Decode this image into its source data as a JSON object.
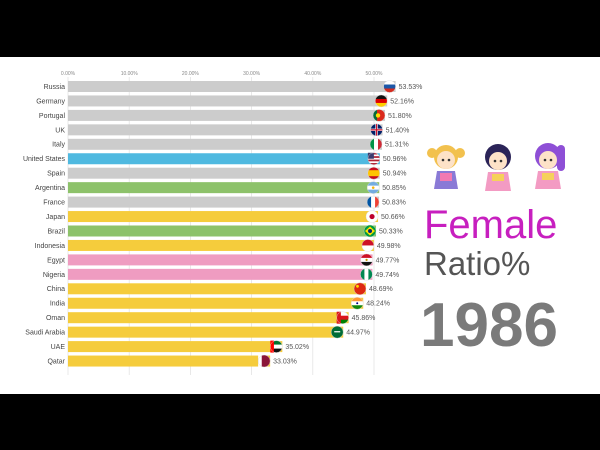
{
  "chart_data": {
    "type": "bar",
    "orientation": "horizontal",
    "x_ticks": [
      "0.00%",
      "10.00%",
      "20.00%",
      "30.00%",
      "40.00%",
      "50.00%"
    ],
    "xlim": [
      0,
      55
    ],
    "grid": true,
    "bars": [
      {
        "category": "Russia",
        "value": 53.53,
        "label": "53.53%",
        "color": "#cccccc",
        "flag": "russia-flag-icon"
      },
      {
        "category": "Germany",
        "value": 52.16,
        "label": "52.16%",
        "color": "#cccccc",
        "flag": "germany-flag-icon"
      },
      {
        "category": "Portugal",
        "value": 51.8,
        "label": "51.80%",
        "color": "#cccccc",
        "flag": "portugal-flag-icon"
      },
      {
        "category": "UK",
        "value": 51.4,
        "label": "51.40%",
        "color": "#cccccc",
        "flag": "uk-flag-icon"
      },
      {
        "category": "Italy",
        "value": 51.31,
        "label": "51.31%",
        "color": "#cccccc",
        "flag": "italy-flag-icon"
      },
      {
        "category": "United States",
        "value": 50.96,
        "label": "50.96%",
        "color": "#4fb9e0",
        "flag": "usa-flag-icon"
      },
      {
        "category": "Spain",
        "value": 50.94,
        "label": "50.94%",
        "color": "#cccccc",
        "flag": "spain-flag-icon"
      },
      {
        "category": "Argentina",
        "value": 50.85,
        "label": "50.85%",
        "color": "#8dc26a",
        "flag": "argentina-flag-icon"
      },
      {
        "category": "France",
        "value": 50.83,
        "label": "50.83%",
        "color": "#cccccc",
        "flag": "france-flag-icon"
      },
      {
        "category": "Japan",
        "value": 50.66,
        "label": "50.66%",
        "color": "#f5cc3c",
        "flag": "japan-flag-icon"
      },
      {
        "category": "Brazil",
        "value": 50.33,
        "label": "50.33%",
        "color": "#8dc26a",
        "flag": "brazil-flag-icon"
      },
      {
        "category": "Indonesia",
        "value": 49.98,
        "label": "49.98%",
        "color": "#f5cc3c",
        "flag": "indonesia-flag-icon"
      },
      {
        "category": "Egypt",
        "value": 49.77,
        "label": "49.77%",
        "color": "#ef9cc1",
        "flag": "egypt-flag-icon"
      },
      {
        "category": "Nigeria",
        "value": 49.74,
        "label": "49.74%",
        "color": "#ef9cc1",
        "flag": "nigeria-flag-icon"
      },
      {
        "category": "China",
        "value": 48.69,
        "label": "48.69%",
        "color": "#f5cc3c",
        "flag": "china-flag-icon"
      },
      {
        "category": "India",
        "value": 48.24,
        "label": "48.24%",
        "color": "#f5cc3c",
        "flag": "india-flag-icon"
      },
      {
        "category": "Oman",
        "value": 45.86,
        "label": "45.86%",
        "color": "#f5cc3c",
        "flag": "oman-flag-icon"
      },
      {
        "category": "Saudi Arabia",
        "value": 44.97,
        "label": "44.97%",
        "color": "#f5cc3c",
        "flag": "saudi-arabia-flag-icon"
      },
      {
        "category": "UAE",
        "value": 35.02,
        "label": "35.02%",
        "color": "#f5cc3c",
        "flag": "uae-flag-icon"
      },
      {
        "category": "Qatar",
        "value": 33.03,
        "label": "33.03%",
        "color": "#f5cc3c",
        "flag": "qatar-flag-icon"
      }
    ]
  },
  "overlay": {
    "line1": "Female",
    "line2": "Ratio%",
    "year": "1986",
    "decoration_icon": "cartoon-girls-icon"
  }
}
